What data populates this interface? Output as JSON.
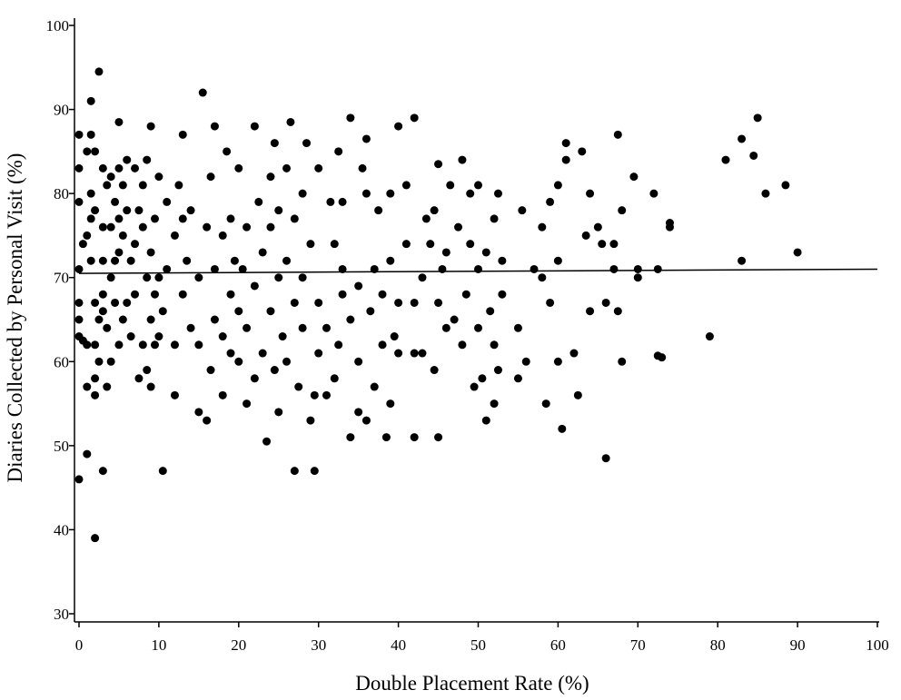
{
  "chart_data": {
    "type": "scatter",
    "xlabel": "Double Placement Rate (%)",
    "ylabel": "Diaries Collected by Personal Visit (%)",
    "xlim": [
      0,
      100
    ],
    "ylim": [
      30,
      100
    ],
    "xticks": [
      0,
      10,
      20,
      30,
      40,
      50,
      60,
      70,
      80,
      90,
      100
    ],
    "yticks": [
      30,
      40,
      50,
      60,
      70,
      80,
      90,
      100
    ],
    "color": "#000000",
    "x": [
      0,
      0,
      0,
      0,
      0,
      0,
      0,
      0,
      0.5,
      0.5,
      1,
      1,
      1,
      1,
      1,
      1.5,
      1.5,
      1.5,
      1.5,
      1.5,
      2,
      2,
      2,
      2,
      2,
      2,
      2,
      2.5,
      2.5,
      2.5,
      3,
      3,
      3,
      3,
      3,
      3,
      3.5,
      3.5,
      3.5,
      4,
      4,
      4,
      4,
      4.5,
      4.5,
      4.5,
      5,
      5,
      5,
      5,
      5,
      5.5,
      5.5,
      5.5,
      6,
      6,
      6,
      6.5,
      6.5,
      7,
      7,
      7,
      7.5,
      7.5,
      8,
      8,
      8,
      8.5,
      8.5,
      8.5,
      9,
      9,
      9,
      9,
      9.5,
      9.5,
      9.5,
      10,
      10,
      10,
      10.5,
      10.5,
      11,
      11,
      12,
      12,
      12,
      12.5,
      13,
      13,
      13,
      13.5,
      14,
      14,
      15,
      15,
      15,
      15.5,
      16,
      16,
      16.5,
      16.5,
      17,
      17,
      17,
      18,
      18,
      18,
      18.5,
      19,
      19,
      19,
      19.5,
      20,
      20,
      20,
      20.5,
      21,
      21,
      21,
      22,
      22,
      22,
      22.5,
      23,
      23,
      23.5,
      24,
      24,
      24,
      24.5,
      24.5,
      25,
      25,
      25,
      25.5,
      26,
      26,
      26,
      26.5,
      27,
      27,
      27,
      27.5,
      28,
      28,
      28,
      28.5,
      29,
      29,
      29.5,
      29.5,
      30,
      30,
      30,
      31,
      31,
      31.5,
      32,
      32,
      32.5,
      32.5,
      33,
      33,
      33,
      34,
      34,
      34,
      35,
      35,
      35,
      35.5,
      36,
      36,
      36,
      36.5,
      37,
      37,
      37.5,
      38,
      38,
      38.5,
      39,
      39,
      39,
      39.5,
      40,
      40,
      40,
      41,
      41,
      42,
      42,
      42,
      42,
      43,
      43,
      43.5,
      44,
      44.5,
      44.5,
      45,
      45,
      45,
      45.5,
      46,
      46,
      46.5,
      47,
      47.5,
      48,
      48,
      48.5,
      49,
      49,
      49.5,
      50,
      50,
      50,
      50.5,
      51,
      51,
      51.5,
      52,
      52,
      52,
      52.5,
      52.5,
      53,
      53,
      55,
      55,
      55.5,
      56,
      57,
      58,
      58,
      58.5,
      59,
      59,
      60,
      60,
      60,
      60.5,
      61,
      61,
      62,
      62.5,
      63,
      63.5,
      64,
      64,
      65,
      65.5,
      66,
      66,
      67,
      67,
      67.5,
      67.5,
      68,
      68,
      69.5,
      70,
      70,
      72,
      72.5,
      73,
      74,
      79,
      81,
      83,
      83,
      84.5,
      85,
      86,
      88.5,
      90,
      72.5,
      74
    ],
    "values": [
      46,
      63,
      65,
      67,
      71,
      79,
      83,
      87,
      62.5,
      74,
      49,
      57,
      62,
      75,
      85,
      87,
      91,
      80,
      77,
      72,
      39,
      56,
      58,
      62,
      67,
      78,
      85,
      94.5,
      60,
      65,
      47,
      66,
      68,
      72,
      76,
      83,
      57,
      64,
      81,
      60,
      70,
      76,
      82,
      67,
      72,
      79,
      62,
      73,
      77,
      83,
      88.5,
      65,
      75,
      81,
      67,
      78,
      84,
      63,
      72,
      68,
      74,
      83,
      58,
      78,
      62,
      76,
      81,
      59,
      70,
      84,
      57,
      65,
      73,
      88,
      62,
      68,
      77,
      63,
      70,
      82,
      47,
      66,
      71,
      79,
      56,
      62,
      75,
      81,
      68,
      87,
      77,
      72,
      64,
      78,
      54,
      62,
      70,
      92,
      53,
      76,
      59,
      82,
      65,
      71,
      88,
      56,
      63,
      75,
      85,
      61,
      68,
      77,
      72,
      60,
      66,
      83,
      71,
      55,
      64,
      76,
      58,
      69,
      88,
      79,
      61,
      73,
      50.5,
      66,
      76,
      82,
      59,
      86,
      54,
      70,
      78,
      63,
      60,
      72,
      83,
      88.5,
      47,
      67,
      77,
      57,
      64,
      70,
      80,
      86,
      53,
      74,
      47,
      56,
      61,
      67,
      83,
      56,
      64,
      79,
      58,
      74,
      62,
      85,
      68,
      71,
      79,
      51,
      65,
      89,
      54,
      60,
      69,
      83,
      53,
      80,
      86.5,
      66,
      57,
      71,
      78,
      62,
      68,
      51,
      55,
      72,
      80,
      63,
      61,
      67,
      88,
      74,
      81,
      51,
      61,
      67,
      89,
      61,
      70,
      77,
      74,
      59,
      78,
      51,
      67,
      83.5,
      71,
      64,
      73,
      81,
      65,
      76,
      62,
      84,
      68,
      74,
      80,
      57,
      64,
      71,
      81,
      58,
      53,
      73,
      66,
      55,
      62,
      77,
      59,
      80,
      72,
      68,
      58,
      64,
      78,
      60,
      71,
      70,
      76,
      55,
      67,
      79,
      60,
      72,
      81,
      52,
      84,
      86,
      61,
      56,
      85,
      75,
      66,
      80,
      76,
      74,
      48.5,
      67,
      71,
      74,
      87,
      66,
      60,
      78,
      82,
      71,
      70,
      80,
      71,
      60.5,
      76,
      63,
      84,
      86.5,
      72,
      84.5,
      89,
      80,
      81,
      73,
      60.7,
      76.5
    ],
    "trend": {
      "x": [
        0,
        100
      ],
      "values": [
        70.5,
        71
      ]
    }
  }
}
